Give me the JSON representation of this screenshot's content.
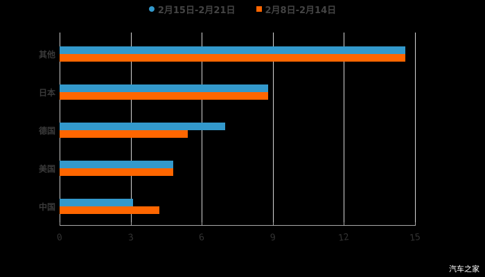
{
  "chart_data": {
    "type": "bar",
    "orientation": "horizontal",
    "title": "",
    "xlabel": "",
    "ylabel": "",
    "categories": [
      "其他",
      "日本",
      "德国",
      "美国",
      "中国"
    ],
    "series": [
      {
        "name": "2月15日-2月21日",
        "color": "#3399cc",
        "values": [
          14.6,
          8.8,
          7.0,
          4.8,
          3.1
        ]
      },
      {
        "name": "2月8日-2月14日",
        "color": "#ff6600",
        "values": [
          14.6,
          8.8,
          5.4,
          4.8,
          4.2
        ]
      }
    ],
    "xlim": [
      0,
      15
    ],
    "x_ticks": [
      "0",
      "3",
      "6",
      "9",
      "12",
      "15"
    ],
    "grid": true,
    "legend_position": "top"
  },
  "legend": [
    {
      "label": "2月15日-2月21日",
      "color": "#3399cc",
      "shape": "circle"
    },
    {
      "label": "2月8日-2月14日",
      "color": "#ff6600",
      "shape": "square"
    }
  ],
  "watermark": "汽车之家"
}
